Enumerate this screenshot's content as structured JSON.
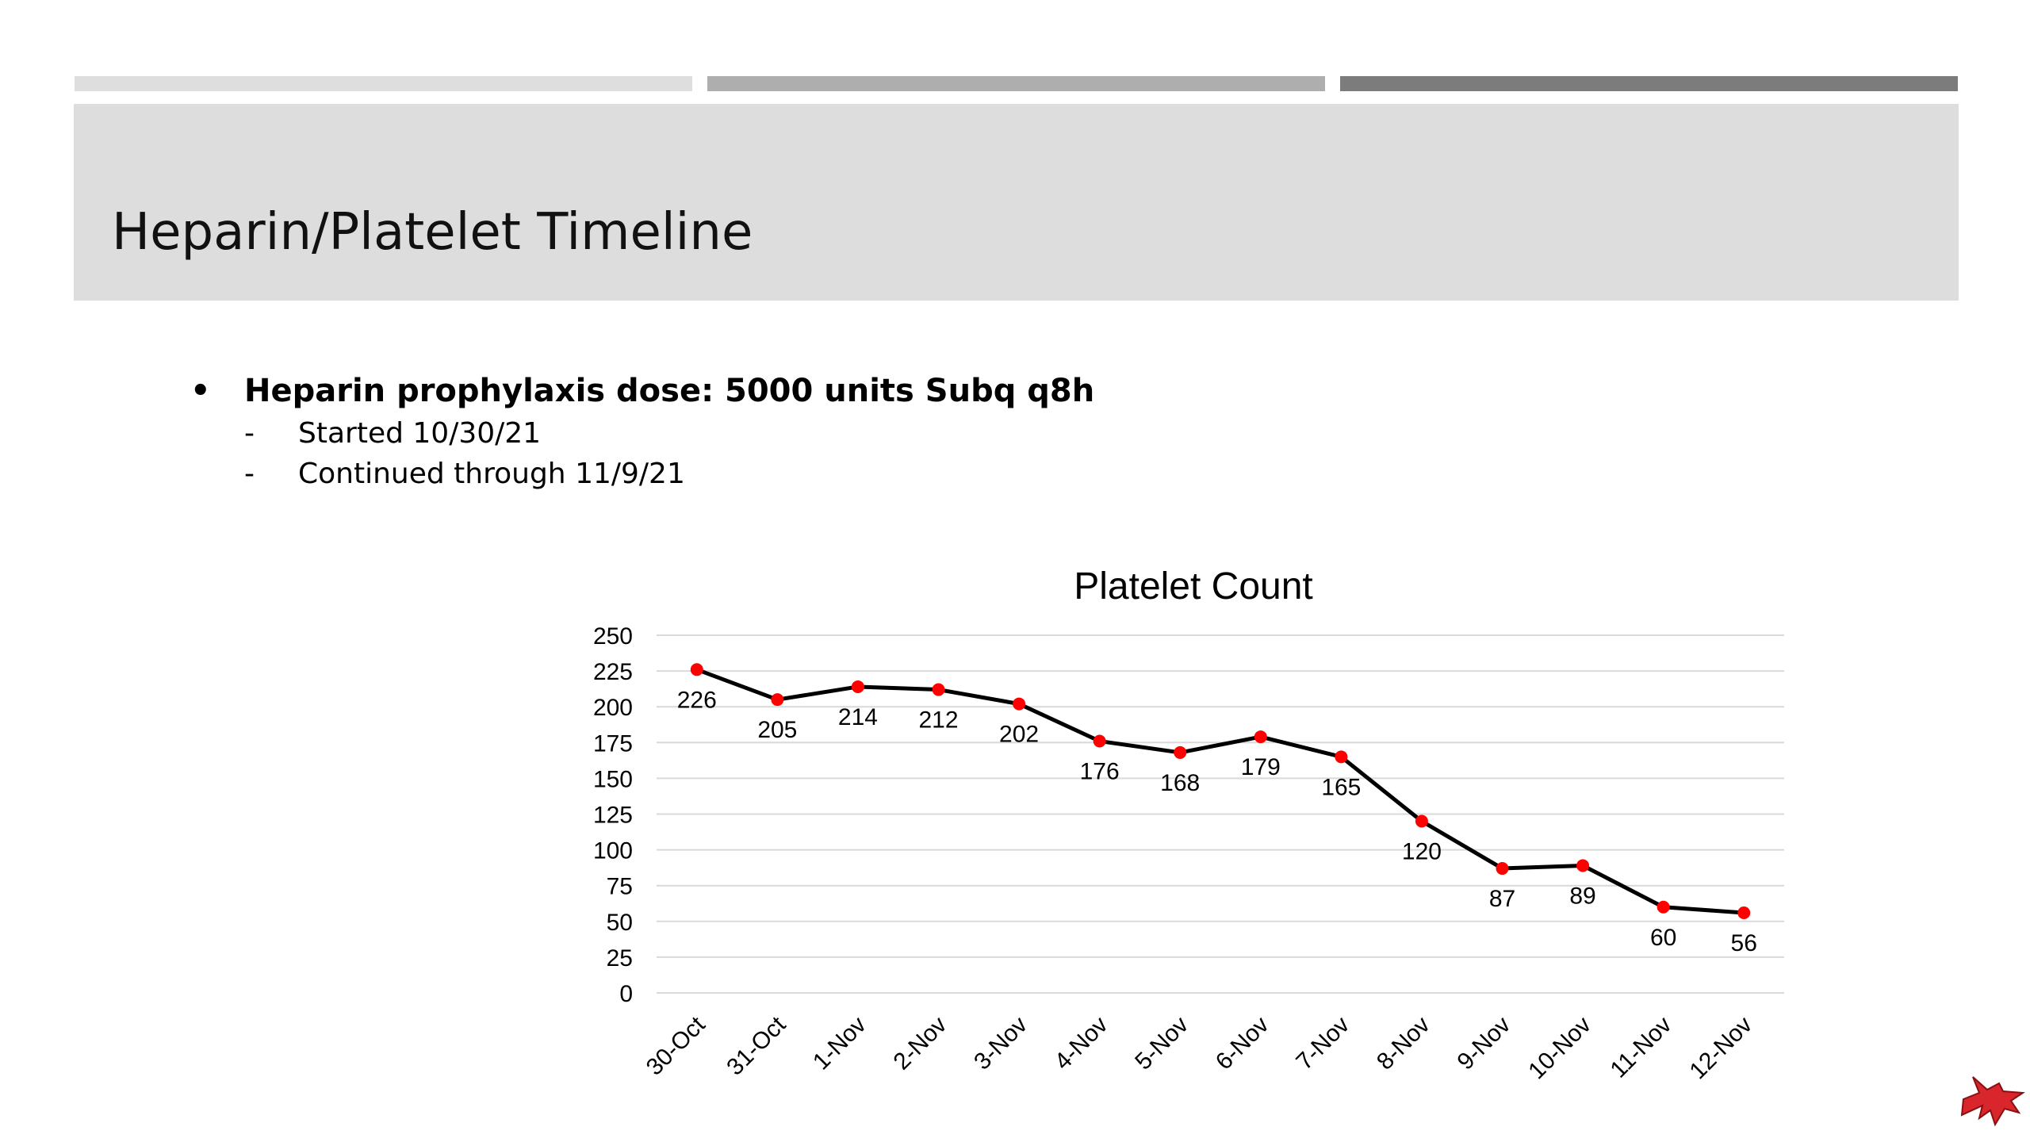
{
  "slide": {
    "title": "Heparin/Platelet Timeline",
    "bullet": "Heparin prophylaxis dose: 5000 units Subq q8h",
    "bullet_marker": "•",
    "sub_marker": "-",
    "subs": [
      "Started 10/30/21",
      "Continued through 11/9/21"
    ]
  },
  "colors": {
    "bar_light": "#dedede",
    "bar_mid": "#aeaeae",
    "bar_dark": "#7c7c7c",
    "title_band": "#dddddd",
    "line": "#000000",
    "marker": "#ff0000",
    "grid": "#d9d9d9"
  },
  "chart_data": {
    "type": "line",
    "title": "Platelet Count",
    "categories": [
      "30-Oct",
      "31-Oct",
      "1-Nov",
      "2-Nov",
      "3-Nov",
      "4-Nov",
      "5-Nov",
      "6-Nov",
      "7-Nov",
      "8-Nov",
      "9-Nov",
      "10-Nov",
      "11-Nov",
      "12-Nov"
    ],
    "series": [
      {
        "values": [
          226,
          205,
          214,
          212,
          202,
          176,
          168,
          179,
          165,
          120,
          87,
          89,
          60,
          56
        ]
      }
    ],
    "ylim": [
      0,
      250
    ],
    "yticks": [
      0,
      25,
      50,
      75,
      100,
      125,
      150,
      175,
      200,
      225,
      250
    ],
    "grid": true,
    "legend": "none",
    "data_labels": "below"
  }
}
